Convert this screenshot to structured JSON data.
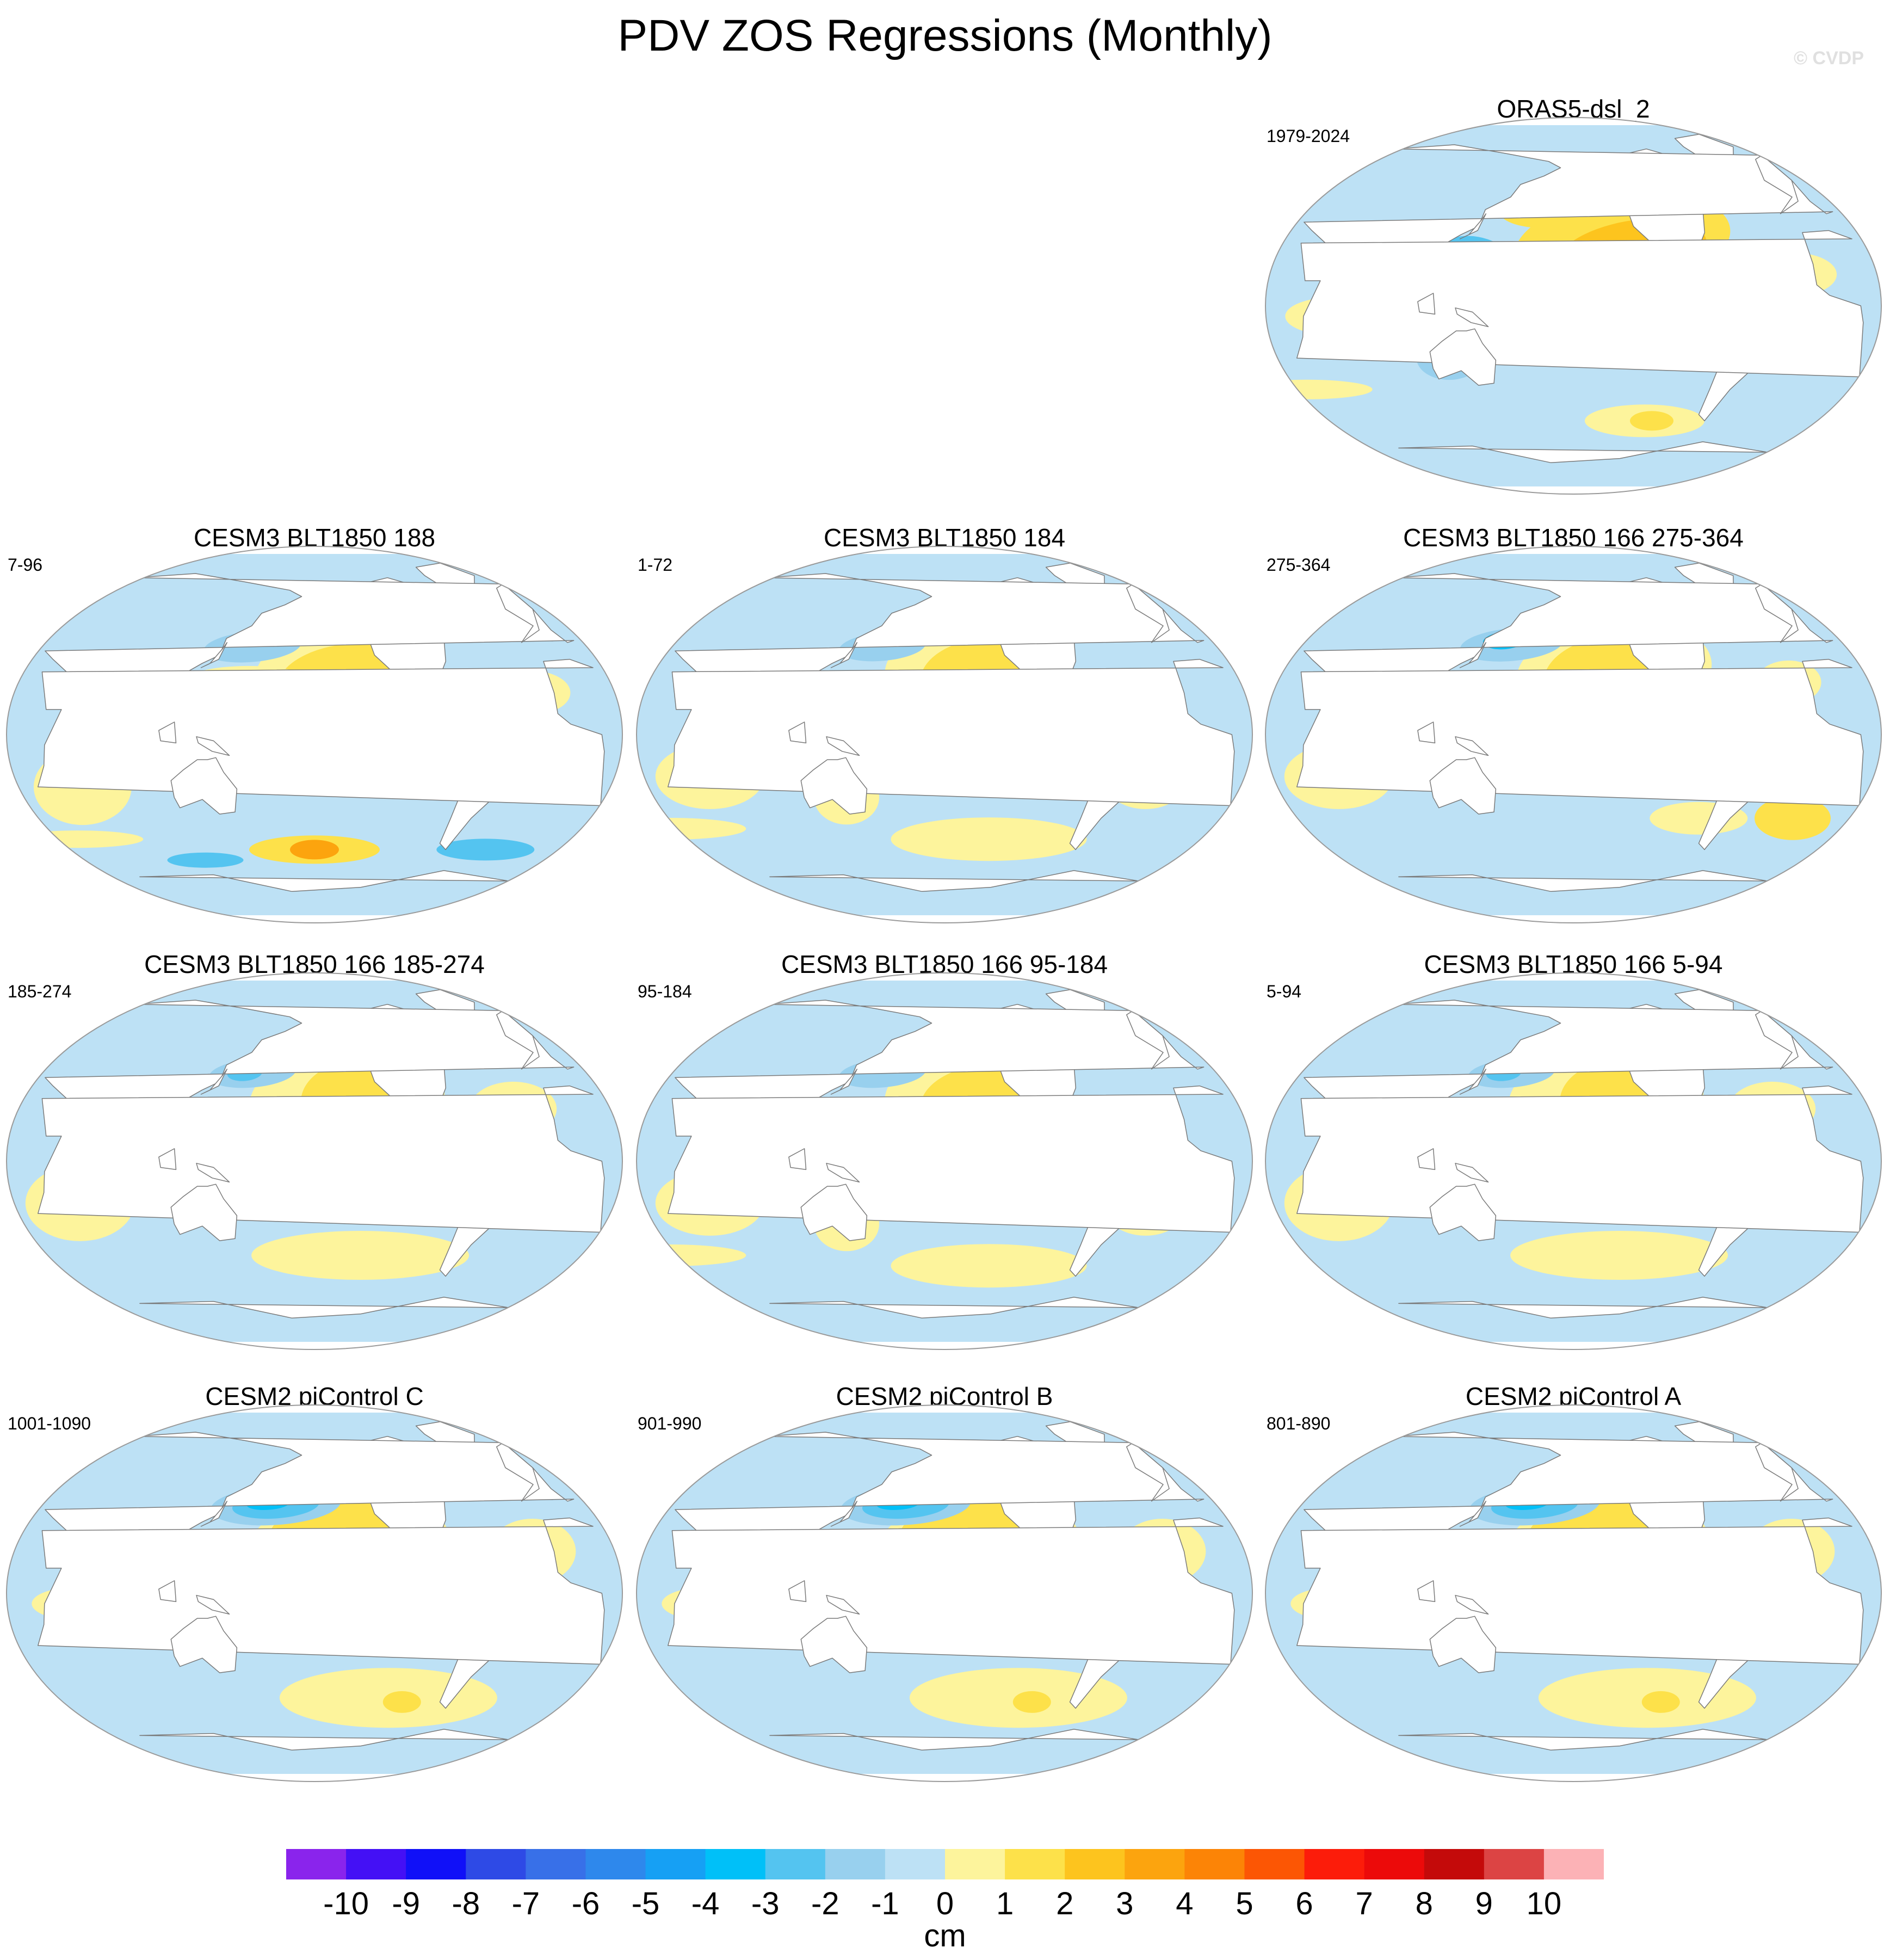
{
  "figure": {
    "title": "PDV ZOS Regressions (Monthly)",
    "watermark": "© CVDP"
  },
  "panels": [
    {
      "id": "oras5",
      "title": "ORAS5-dsl_2",
      "period": "1979-2024",
      "col": 2,
      "row": 0,
      "pattern": "obs"
    },
    {
      "id": "blt188",
      "title": "CESM3 BLT1850 188",
      "period": "7-96",
      "col": 0,
      "row": 1,
      "pattern": "blt_a"
    },
    {
      "id": "blt184",
      "title": "CESM3 BLT1850 184",
      "period": "1-72",
      "col": 1,
      "row": 1,
      "pattern": "blt_b"
    },
    {
      "id": "blt166c",
      "title": "CESM3 BLT1850 166 275-364",
      "period": "275-364",
      "col": 2,
      "row": 1,
      "pattern": "blt_c"
    },
    {
      "id": "blt166b",
      "title": "CESM3 BLT1850 166 185-274",
      "period": "185-274",
      "col": 0,
      "row": 2,
      "pattern": "blt_d"
    },
    {
      "id": "blt166a",
      "title": "CESM3 BLT1850 166 95-184",
      "period": "95-184",
      "col": 1,
      "row": 2,
      "pattern": "blt_b"
    },
    {
      "id": "blt166z",
      "title": "CESM3 BLT1850 166 5-94",
      "period": "5-94",
      "col": 2,
      "row": 2,
      "pattern": "blt_d"
    },
    {
      "id": "picC",
      "title": "CESM2 piControl C",
      "period": "1001-1090",
      "col": 0,
      "row": 3,
      "pattern": "pic"
    },
    {
      "id": "picB",
      "title": "CESM2 piControl B",
      "period": "901-990",
      "col": 1,
      "row": 3,
      "pattern": "pic"
    },
    {
      "id": "picA",
      "title": "CESM2 piControl A",
      "period": "801-890",
      "col": 2,
      "row": 3,
      "pattern": "pic"
    }
  ],
  "colorbar": {
    "unit": "cm",
    "ticks": [
      "-10",
      "-9",
      "-8",
      "-7",
      "-6",
      "-5",
      "-4",
      "-3",
      "-2",
      "-1",
      "0",
      "1",
      "2",
      "3",
      "4",
      "5",
      "6",
      "7",
      "8",
      "9",
      "10"
    ],
    "colors": [
      "#8a24ec",
      "#4410f5",
      "#1010f8",
      "#2e4ae6",
      "#3870e8",
      "#2e88ec",
      "#16a0f4",
      "#00c0f8",
      "#54c4f0",
      "#98d0ee",
      "#bde1f5",
      "#fdf49c",
      "#fde14a",
      "#fdc41e",
      "#fca40e",
      "#fc8406",
      "#fc5604",
      "#fc1c0a",
      "#ec0a0a",
      "#c40a0a",
      "#dc4444",
      "#fcb2b6"
    ]
  }
}
